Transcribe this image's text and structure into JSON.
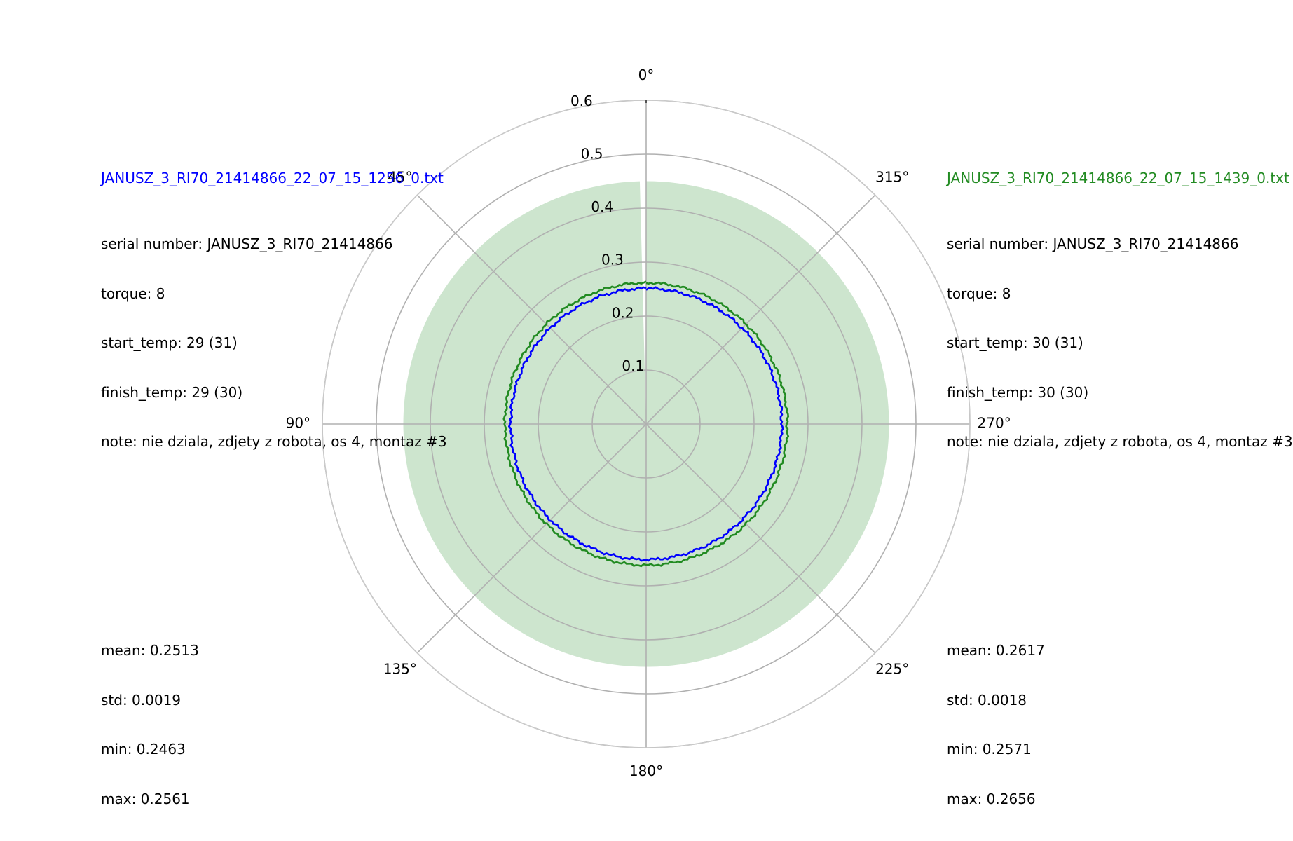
{
  "chart_data": {
    "type": "polar-line",
    "theta_direction": "counterclockwise",
    "theta_zero_location": "top",
    "theta_ticks": [
      "0°",
      "45°",
      "90°",
      "135°",
      "180°",
      "225°",
      "270°",
      "315°"
    ],
    "r_ticks": [
      "0.1",
      "0.2",
      "0.3",
      "0.4",
      "0.5",
      "0.6"
    ],
    "rlim": [
      0,
      0.6
    ],
    "grid": true,
    "band": {
      "color": "#cde5ce",
      "r_inner": 0,
      "r_outer": 0.45,
      "gap_theta_deg": [
        0,
        1.5
      ]
    },
    "series": [
      {
        "name": "JANUSZ_3_RI70_21414866_22_07_15_1256_0.txt",
        "color": "#0000ff",
        "mean": 0.2513,
        "std": 0.0019,
        "min": 0.2463,
        "max": 0.2561
      },
      {
        "name": "JANUSZ_3_RI70_21414866_22_07_15_1439_0.txt",
        "color": "#228b22",
        "mean": 0.2617,
        "std": 0.0018,
        "min": 0.2571,
        "max": 0.2656
      }
    ]
  },
  "left_panel": {
    "title": "JANUSZ_3_RI70_21414866_22_07_15_1256_0.txt",
    "title_color": "#0000ff",
    "serial": "serial number: JANUSZ_3_RI70_21414866",
    "torque": "torque: 8",
    "start_temp": "start_temp: 29 (31)",
    "finish_temp": "finish_temp: 29 (30)",
    "note": "note: nie dziala, zdjety z robota, os 4, montaz #3",
    "mean": "mean: 0.2513",
    "std": "std: 0.0019",
    "min": "min: 0.2463",
    "max": "max: 0.2561"
  },
  "right_panel": {
    "title": "JANUSZ_3_RI70_21414866_22_07_15_1439_0.txt",
    "title_color": "#228b22",
    "serial": "serial number: JANUSZ_3_RI70_21414866",
    "torque": "torque: 8",
    "start_temp": "start_temp: 30 (31)",
    "finish_temp": "finish_temp: 30 (30)",
    "note": "note: nie dziala, zdjety z robota, os 4, montaz #3",
    "mean": "mean: 0.2617",
    "std": "std: 0.0018",
    "min": "min: 0.2571",
    "max": "max: 0.2656"
  }
}
